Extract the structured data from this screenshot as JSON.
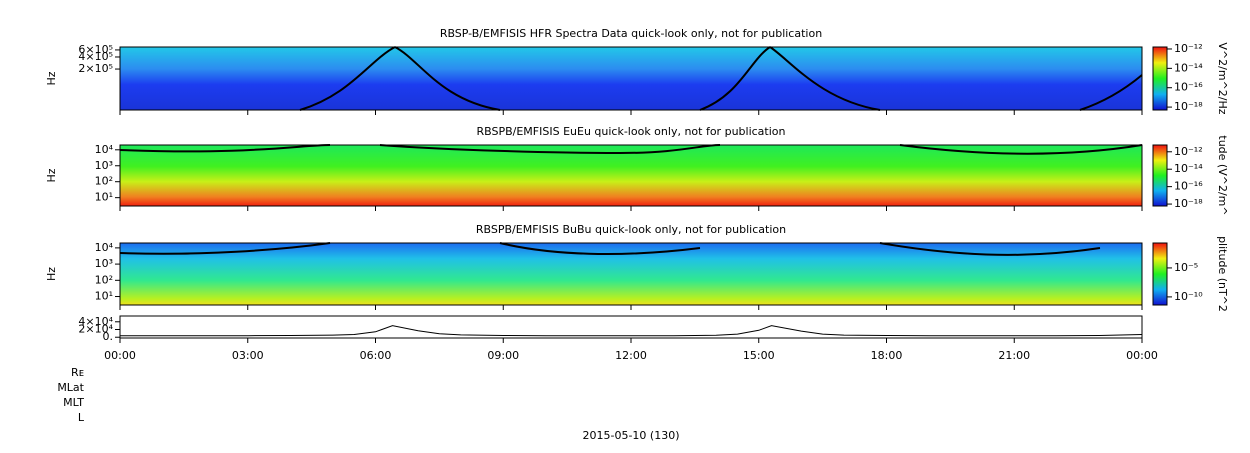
{
  "chart_data": [
    {
      "type": "spectrogram",
      "title": "RBSP-B/EMFISIS  HFR Spectra Data quick-look only, not for publication",
      "ylabel": "Hz",
      "log_y": true,
      "ylim": [
        19000,
        710000
      ],
      "yticks": [
        {
          "value": 200000,
          "label": "2×10⁵"
        },
        {
          "value": 400000,
          "label": "4×10⁵"
        },
        {
          "value": 600000,
          "label": "6×10⁵"
        }
      ],
      "colorbar_label": "V^2/m^2/Hz",
      "clim": [
        5e-19,
        1.6e-12
      ],
      "cticks": [
        {
          "value": 1e-18,
          "label": "10⁻¹⁸"
        },
        {
          "value": 1e-16,
          "label": "10⁻¹⁶"
        },
        {
          "value": 1e-14,
          "label": "10⁻¹⁴"
        },
        {
          "value": 1e-12,
          "label": "10⁻¹²"
        }
      ]
    },
    {
      "type": "spectrogram",
      "title": "RBSPB/EMFISIS  EuEu quick-look only, not for publication",
      "ylabel": "Hz",
      "log_y": true,
      "ylim": [
        3,
        20000
      ],
      "yticks": [
        {
          "value": 10,
          "label": "10¹"
        },
        {
          "value": 100,
          "label": "10²"
        },
        {
          "value": 1000,
          "label": "10³"
        },
        {
          "value": 10000,
          "label": "10⁴"
        }
      ],
      "colorbar_label": "tude (V^2/m^",
      "clim": [
        6e-19,
        6e-12
      ],
      "cticks": [
        {
          "value": 1e-18,
          "label": "10⁻¹⁸"
        },
        {
          "value": 1e-16,
          "label": "10⁻¹⁶"
        },
        {
          "value": 1e-14,
          "label": "10⁻¹⁴"
        },
        {
          "value": 1e-12,
          "label": "10⁻¹²"
        }
      ]
    },
    {
      "type": "spectrogram",
      "title": "RBSPB/EMFISIS  BuBu quick-look only, not for publication",
      "ylabel": "Hz",
      "log_y": true,
      "ylim": [
        3,
        20000
      ],
      "yticks": [
        {
          "value": 10,
          "label": "10¹"
        },
        {
          "value": 100,
          "label": "10²"
        },
        {
          "value": 1000,
          "label": "10³"
        },
        {
          "value": 10000,
          "label": "10⁴"
        }
      ],
      "colorbar_label": "plitude (nT^2",
      "clim": [
        4e-12,
        0.2
      ],
      "cticks": [
        {
          "value": 1e-10,
          "label": "10⁻¹⁰"
        },
        {
          "value": 1e-05,
          "label": "10⁻⁵"
        }
      ]
    },
    {
      "type": "line",
      "color": "#000000",
      "ylim": [
        -2000,
        55000
      ],
      "yticks": [
        {
          "value": 0,
          "label": "0."
        },
        {
          "value": 20000,
          "label": "2×10⁴"
        },
        {
          "value": 40000,
          "label": "4×10⁴"
        }
      ],
      "xlim": [
        0,
        24
      ],
      "xticks": [
        {
          "value": 0,
          "label": "00:00"
        },
        {
          "value": 3,
          "label": "03:00"
        },
        {
          "value": 6,
          "label": "06:00"
        },
        {
          "value": 9,
          "label": "09:00"
        },
        {
          "value": 12,
          "label": "12:00"
        },
        {
          "value": 15,
          "label": "15:00"
        },
        {
          "value": 18,
          "label": "18:00"
        },
        {
          "value": 21,
          "label": "21:00"
        },
        {
          "value": 24,
          "label": "00:00"
        }
      ],
      "x": [
        0,
        1,
        2,
        3,
        4,
        5,
        5.5,
        6,
        6.4,
        7,
        7.5,
        8,
        9,
        10,
        11,
        12,
        13,
        14,
        14.5,
        15,
        15.3,
        16,
        16.5,
        17,
        18,
        19,
        20,
        21,
        22,
        23,
        24
      ],
      "values": [
        4000,
        4000,
        4000,
        4000,
        4500,
        5500,
        7000,
        14000,
        30000,
        17000,
        9000,
        6000,
        4500,
        4000,
        4000,
        4000,
        4000,
        5000,
        8000,
        18000,
        30000,
        16000,
        8000,
        5500,
        4500,
        4000,
        4000,
        4000,
        4000,
        4500,
        7000
      ],
      "ephemeris_labels": [
        "Rᴇ",
        "MLat",
        "MLT",
        "L"
      ],
      "xlabel": "2015-05-10 (130)"
    }
  ]
}
